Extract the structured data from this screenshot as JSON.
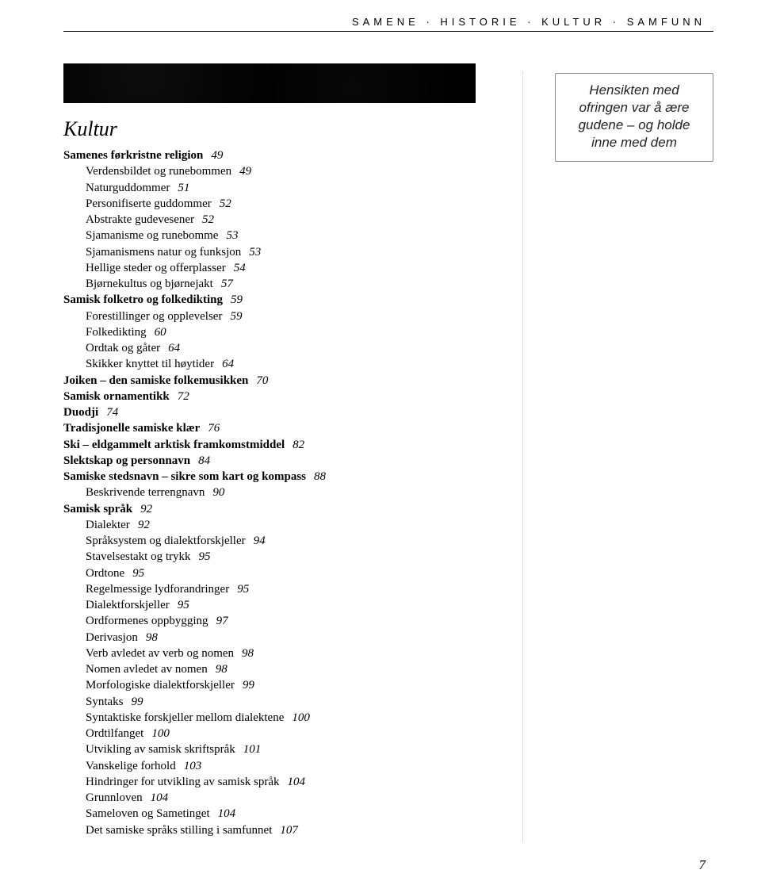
{
  "running_head": "SAMENE · HISTORIE · KULTUR · SAMFUNN",
  "section_title": "Kultur",
  "callout": "Hensikten med ofringen var å ære gudene – og holde inne med dem",
  "page_number": "7",
  "toc": [
    {
      "text": "Samenes førkristne religion",
      "page": "49",
      "bold": true,
      "indent": 0
    },
    {
      "text": "Verdensbildet og runebommen",
      "page": "49",
      "bold": false,
      "indent": 1
    },
    {
      "text": "Naturguddommer",
      "page": "51",
      "bold": false,
      "indent": 1
    },
    {
      "text": "Personifiserte guddommer",
      "page": "52",
      "bold": false,
      "indent": 1
    },
    {
      "text": "Abstrakte gudevesener",
      "page": "52",
      "bold": false,
      "indent": 1
    },
    {
      "text": "Sjamanisme og runebomme",
      "page": "53",
      "bold": false,
      "indent": 1
    },
    {
      "text": "Sjamanismens natur og funksjon",
      "page": "53",
      "bold": false,
      "indent": 1
    },
    {
      "text": "Hellige steder og offerplasser",
      "page": "54",
      "bold": false,
      "indent": 1
    },
    {
      "text": "Bjørnekultus og bjørnejakt",
      "page": "57",
      "bold": false,
      "indent": 1
    },
    {
      "text": "Samisk folketro og folkedikting",
      "page": "59",
      "bold": true,
      "indent": 0
    },
    {
      "text": "Forestillinger og opplevelser",
      "page": "59",
      "bold": false,
      "indent": 1
    },
    {
      "text": "Folkedikting",
      "page": "60",
      "bold": false,
      "indent": 1
    },
    {
      "text": "Ordtak og gåter",
      "page": "64",
      "bold": false,
      "indent": 1
    },
    {
      "text": "Skikker knyttet til høytider",
      "page": "64",
      "bold": false,
      "indent": 1
    },
    {
      "text": "Joiken – den samiske folkemusikken",
      "page": "70",
      "bold": true,
      "indent": 0
    },
    {
      "text": "Samisk ornamentikk",
      "page": "72",
      "bold": true,
      "indent": 0
    },
    {
      "text": "Duodji",
      "page": "74",
      "bold": true,
      "indent": 0
    },
    {
      "text": "Tradisjonelle samiske klær",
      "page": "76",
      "bold": true,
      "indent": 0
    },
    {
      "text": "Ski – eldgammelt arktisk framkomstmiddel",
      "page": "82",
      "bold": true,
      "indent": 0
    },
    {
      "text": "Slektskap og personnavn",
      "page": "84",
      "bold": true,
      "indent": 0
    },
    {
      "text": "Samiske stedsnavn – sikre som kart og kompass",
      "page": "88",
      "bold": true,
      "indent": 0
    },
    {
      "text": "Beskrivende terrengnavn",
      "page": "90",
      "bold": false,
      "indent": 1
    },
    {
      "text": "Samisk språk",
      "page": "92",
      "bold": true,
      "indent": 0
    },
    {
      "text": "Dialekter",
      "page": "92",
      "bold": false,
      "indent": 1
    },
    {
      "text": "Språksystem og dialektforskjeller",
      "page": "94",
      "bold": false,
      "indent": 1
    },
    {
      "text": "Stavelsestakt og trykk",
      "page": "95",
      "bold": false,
      "indent": 1
    },
    {
      "text": "Ordtone",
      "page": "95",
      "bold": false,
      "indent": 1
    },
    {
      "text": "Regelmessige lydforandringer",
      "page": "95",
      "bold": false,
      "indent": 1
    },
    {
      "text": "Dialektforskjeller",
      "page": "95",
      "bold": false,
      "indent": 1
    },
    {
      "text": "Ordformenes oppbygging",
      "page": "97",
      "bold": false,
      "indent": 1
    },
    {
      "text": "Derivasjon",
      "page": "98",
      "bold": false,
      "indent": 1
    },
    {
      "text": "Verb avledet av verb og nomen",
      "page": "98",
      "bold": false,
      "indent": 1
    },
    {
      "text": "Nomen avledet av nomen",
      "page": "98",
      "bold": false,
      "indent": 1
    },
    {
      "text": "Morfologiske dialektforskjeller",
      "page": "99",
      "bold": false,
      "indent": 1
    },
    {
      "text": "Syntaks",
      "page": "99",
      "bold": false,
      "indent": 1
    },
    {
      "text": "Syntaktiske forskjeller mellom dialektene",
      "page": "100",
      "bold": false,
      "indent": 1
    },
    {
      "text": "Ordtilfanget",
      "page": "100",
      "bold": false,
      "indent": 1
    },
    {
      "text": "Utvikling av samisk skriftspråk",
      "page": "101",
      "bold": false,
      "indent": 1
    },
    {
      "text": "Vanskelige forhold",
      "page": "103",
      "bold": false,
      "indent": 1
    },
    {
      "text": "Hindringer for utvikling av samisk språk",
      "page": "104",
      "bold": false,
      "indent": 1
    },
    {
      "text": "Grunnloven",
      "page": "104",
      "bold": false,
      "indent": 1
    },
    {
      "text": "Sameloven og Sametinget",
      "page": "104",
      "bold": false,
      "indent": 1
    },
    {
      "text": "Det samiske språks stilling i samfunnet",
      "page": "107",
      "bold": false,
      "indent": 1
    }
  ]
}
